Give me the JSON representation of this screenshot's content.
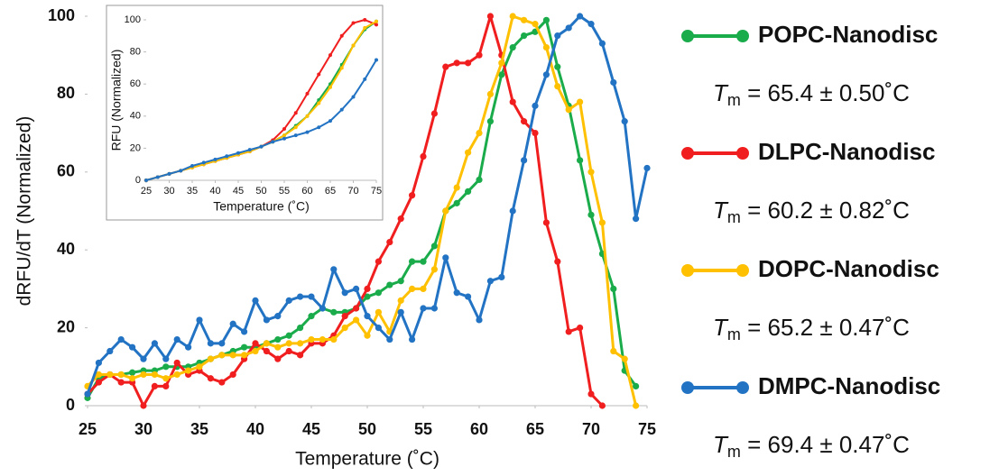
{
  "chart_data": [
    {
      "type": "line",
      "ylabel": "dRFU/dT (Normalized)",
      "xlabel": "Temperature (˚C)",
      "xlim": [
        25,
        75
      ],
      "ylim": [
        0,
        100
      ],
      "xticks": [
        25,
        30,
        35,
        40,
        45,
        50,
        55,
        60,
        65,
        70,
        75
      ],
      "yticks": [
        0,
        20,
        40,
        60,
        80,
        100
      ],
      "legend": "right",
      "x": [
        25,
        26,
        27,
        28,
        29,
        30,
        31,
        32,
        33,
        34,
        35,
        36,
        37,
        38,
        39,
        40,
        41,
        42,
        43,
        44,
        45,
        46,
        47,
        48,
        49,
        50,
        51,
        52,
        53,
        54,
        55,
        56,
        57,
        58,
        59,
        60,
        61,
        62,
        63,
        64,
        65,
        66,
        67,
        68,
        69,
        70,
        71,
        72,
        73,
        74,
        75
      ],
      "series": [
        {
          "name": "POPC-Nanodisc",
          "color": "#1aab4b",
          "tm": {
            "symbol": "T",
            "subscript": "m",
            "text": " = 65.4 ± 0.50˚C"
          },
          "values": [
            2,
            7,
            8,
            8,
            8.5,
            9,
            9,
            10,
            10,
            10,
            11,
            12,
            13,
            14,
            15,
            15,
            16,
            17,
            18,
            20,
            23,
            25,
            24,
            24,
            25,
            28,
            29,
            31,
            32,
            37,
            37,
            41,
            50,
            52,
            55,
            58,
            73,
            85,
            92,
            95,
            96,
            99,
            87,
            77,
            63,
            49,
            39,
            30,
            9,
            5,
            null
          ]
        },
        {
          "name": "DLPC-Nanodisc",
          "color": "#f01e1e",
          "tm": {
            "symbol": "T",
            "subscript": "m",
            "text": " = 60.2 ± 0.82˚C"
          },
          "values": [
            3,
            6,
            8,
            6,
            6,
            0,
            5,
            5,
            11,
            8,
            9,
            7,
            6,
            8,
            12,
            16,
            14,
            12,
            14,
            13,
            16,
            16,
            18,
            23,
            25,
            30,
            37,
            42,
            48,
            54,
            64,
            75,
            87,
            88,
            88,
            90,
            100,
            90,
            78,
            73,
            70,
            47,
            37,
            19,
            20,
            3,
            0,
            null,
            null,
            null,
            null
          ]
        },
        {
          "name": "DOPC-Nanodisc",
          "color": "#ffc000",
          "tm": {
            "symbol": "T",
            "subscript": "m",
            "text": " = 65.2 ± 0.47˚C"
          },
          "values": [
            5,
            8,
            8,
            8,
            7,
            8,
            8,
            7,
            8,
            9,
            10,
            12,
            13,
            13,
            13,
            14,
            16,
            15,
            16,
            16,
            17,
            17,
            17,
            20,
            22,
            18,
            24,
            19,
            27,
            30,
            30,
            35,
            50,
            56,
            65,
            70,
            80,
            88,
            100,
            99,
            98,
            92,
            82,
            76,
            78,
            60,
            47,
            14,
            12,
            0,
            null
          ]
        },
        {
          "name": "DMPC-Nanodisc",
          "color": "#2273c3",
          "tm": {
            "symbol": "T",
            "subscript": "m",
            "text": " = 69.4 ± 0.47˚C"
          },
          "values": [
            3,
            11,
            14,
            17,
            15,
            12,
            16,
            12,
            17,
            15,
            22,
            16,
            16,
            21,
            19,
            27,
            22,
            23,
            27,
            28,
            28,
            25,
            35,
            29,
            30,
            23,
            20,
            17,
            24,
            17,
            25,
            25,
            38,
            29,
            28,
            22,
            32,
            33,
            50,
            63,
            77,
            85,
            95,
            97,
            100,
            98,
            93,
            83,
            73,
            48,
            61
          ]
        }
      ]
    },
    {
      "type": "line",
      "ylabel": "RFU (Normalized)",
      "xlabel": "Temperature (˚C)",
      "xlim": [
        25,
        75
      ],
      "ylim": [
        0,
        100
      ],
      "xticks": [
        25,
        30,
        35,
        40,
        45,
        50,
        55,
        60,
        65,
        70,
        75
      ],
      "yticks": [
        0,
        20,
        40,
        60,
        80,
        100
      ],
      "x": [
        25,
        27.5,
        30,
        32.5,
        35,
        37.5,
        40,
        42.5,
        45,
        47.5,
        50,
        52.5,
        55,
        57.5,
        60,
        62.5,
        65,
        67.5,
        70,
        72.5,
        75
      ],
      "series": [
        {
          "name": "POPC-Nanodisc",
          "color": "#1aab4b",
          "values": [
            0,
            2,
            4,
            6,
            8,
            10,
            12,
            14,
            16,
            18,
            21,
            24,
            28,
            34,
            40,
            50,
            60,
            72,
            84,
            94,
            99
          ]
        },
        {
          "name": "DLPC-Nanodisc",
          "color": "#f01e1e",
          "values": [
            0,
            2,
            4,
            6,
            8,
            10,
            12,
            14,
            16,
            18,
            21,
            25,
            32,
            42,
            54,
            66,
            78,
            90,
            98,
            100,
            97
          ]
        },
        {
          "name": "DOPC-Nanodisc",
          "color": "#ffc000",
          "values": [
            0,
            2,
            4,
            6,
            8,
            10,
            12,
            14,
            16,
            18,
            21,
            24,
            28,
            33,
            40,
            48,
            58,
            70,
            84,
            95,
            99
          ]
        },
        {
          "name": "DMPC-Nanodisc",
          "color": "#2273c3",
          "values": [
            0,
            2,
            4,
            6,
            9,
            11,
            13,
            15,
            17,
            19,
            21,
            24,
            26,
            28,
            30,
            33,
            37,
            44,
            52,
            63,
            75
          ]
        }
      ]
    }
  ]
}
